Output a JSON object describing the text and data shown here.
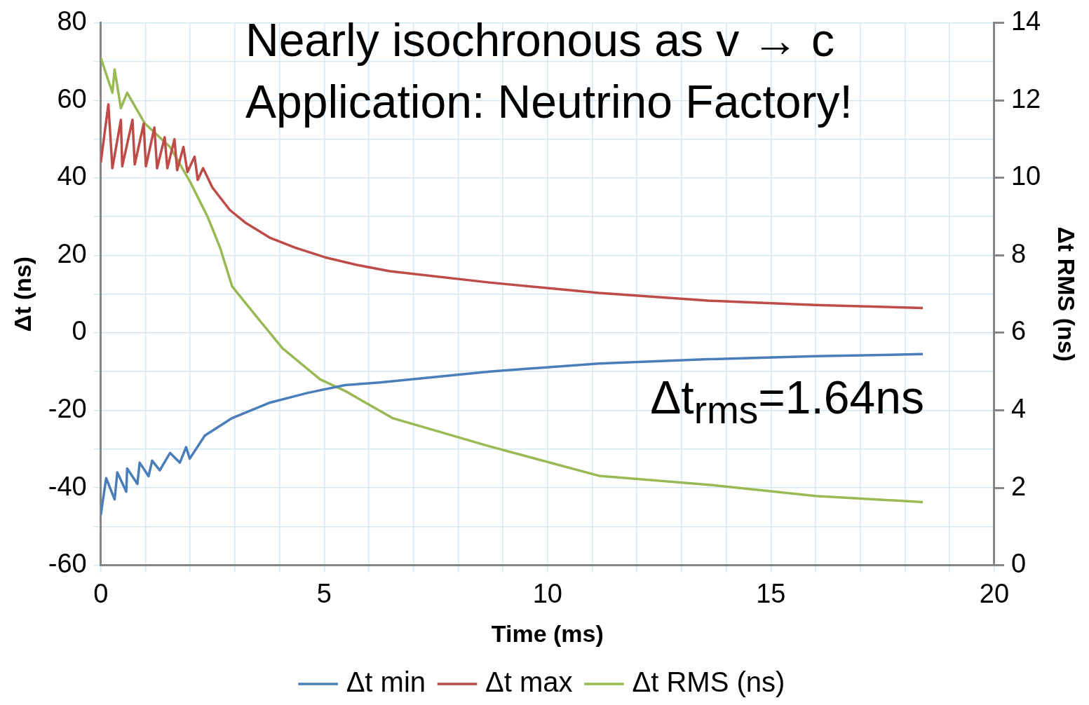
{
  "chart_data": {
    "type": "line",
    "xlabel": "Time (ms)",
    "ylabel": "Δt (ns)",
    "y2label": "Δt RMS (ns)",
    "annotations": [
      "Nearly isochronous as v → c",
      "Application: Neutrino Factory!",
      "Δt$_{rms}$=1.64ns"
    ],
    "xlim": [
      0,
      20
    ],
    "xticks": [
      0,
      {
        "value": 1,
        "label": null
      },
      {
        "value": 2,
        "label": null
      },
      {
        "value": 3,
        "label": null
      },
      {
        "value": 4,
        "label": null
      },
      5,
      {
        "value": 6,
        "label": null
      },
      {
        "value": 7,
        "label": null
      },
      {
        "value": 8,
        "label": null
      },
      {
        "value": 9,
        "label": null
      },
      10,
      {
        "value": 11,
        "label": null
      },
      {
        "value": 12,
        "label": null
      },
      {
        "value": 13,
        "label": null
      },
      {
        "value": 14,
        "label": null
      },
      15,
      {
        "value": 16,
        "label": null
      },
      {
        "value": 17,
        "label": null
      },
      {
        "value": 18,
        "label": null
      },
      {
        "value": 19,
        "label": null
      },
      20
    ],
    "ylim": [
      -60,
      80
    ],
    "yticks": [
      -60,
      {
        "value": -50,
        "label": null
      },
      -40,
      {
        "value": -30,
        "label": null
      },
      -20,
      {
        "value": -10,
        "label": null
      },
      0,
      {
        "value": 10,
        "label": null
      },
      20,
      {
        "value": 30,
        "label": null
      },
      40,
      {
        "value": 50,
        "label": null
      },
      60,
      {
        "value": 70,
        "label": null
      },
      80
    ],
    "y2lim": [
      0,
      14
    ],
    "y2ticks": [
      0,
      2,
      4,
      6,
      8,
      10,
      12,
      14
    ],
    "grid": true,
    "legend": "bottom",
    "marker": "none",
    "line_style": "solid",
    "series": [
      {
        "name": "Δt min",
        "color": "#4a7ebb",
        "x": [
          0,
          0.12,
          0.31,
          0.37,
          0.57,
          0.59,
          0.82,
          0.87,
          1.07,
          1.15,
          1.32,
          1.55,
          1.77,
          1.91,
          1.99,
          2.33,
          2.94,
          3.79,
          4.63,
          5.47,
          6.25,
          8.7,
          11.15,
          13.6,
          16,
          18.4
        ],
        "values": [
          -47,
          -37.5,
          -43,
          -36,
          -41,
          -35,
          -39,
          -33.5,
          -37,
          -33,
          -35.5,
          -31,
          -33.5,
          -29.5,
          -32.5,
          -26.5,
          -22,
          -18,
          -15.5,
          -13.5,
          -12.8,
          -10,
          -7.9,
          -6.8,
          -6,
          -5.5
        ]
      },
      {
        "name": "Δt max",
        "color": "#be4b48",
        "x": [
          0,
          0.17,
          0.26,
          0.45,
          0.48,
          0.71,
          0.76,
          0.96,
          1.01,
          1.2,
          1.26,
          1.43,
          1.49,
          1.65,
          1.71,
          1.85,
          1.94,
          2.1,
          2.17,
          2.29,
          2.5,
          2.89,
          3.23,
          3.78,
          4.35,
          5.02,
          5.75,
          6.47,
          8.7,
          11.15,
          13.6,
          16,
          18.4
        ],
        "values": [
          44,
          59,
          42.5,
          55,
          43,
          55,
          43.5,
          54,
          43,
          53,
          42.5,
          50.5,
          42.5,
          50,
          42,
          48,
          41.5,
          45.5,
          39.5,
          42.5,
          37.5,
          31.7,
          28.5,
          24.6,
          22,
          19.5,
          17.5,
          15.9,
          13,
          10.3,
          8.3,
          7.2,
          6.4
        ]
      },
      {
        "name": "Δt RMS (ns)",
        "color": "#98b954",
        "axis": "y2",
        "x": [
          0,
          0.26,
          0.31,
          0.45,
          0.59,
          0.99,
          1.55,
          2,
          2.39,
          2.67,
          2.94,
          3.5,
          4.07,
          4.91,
          5.47,
          6.53,
          8.7,
          11.15,
          13.6,
          16,
          18.4
        ],
        "values": [
          13.1,
          12.2,
          12.8,
          11.8,
          12.2,
          11.4,
          10.8,
          9.9,
          9,
          8.2,
          7.2,
          6.4,
          5.6,
          4.8,
          4.5,
          3.8,
          3.07,
          2.31,
          2.08,
          1.79,
          1.63
        ]
      }
    ]
  }
}
